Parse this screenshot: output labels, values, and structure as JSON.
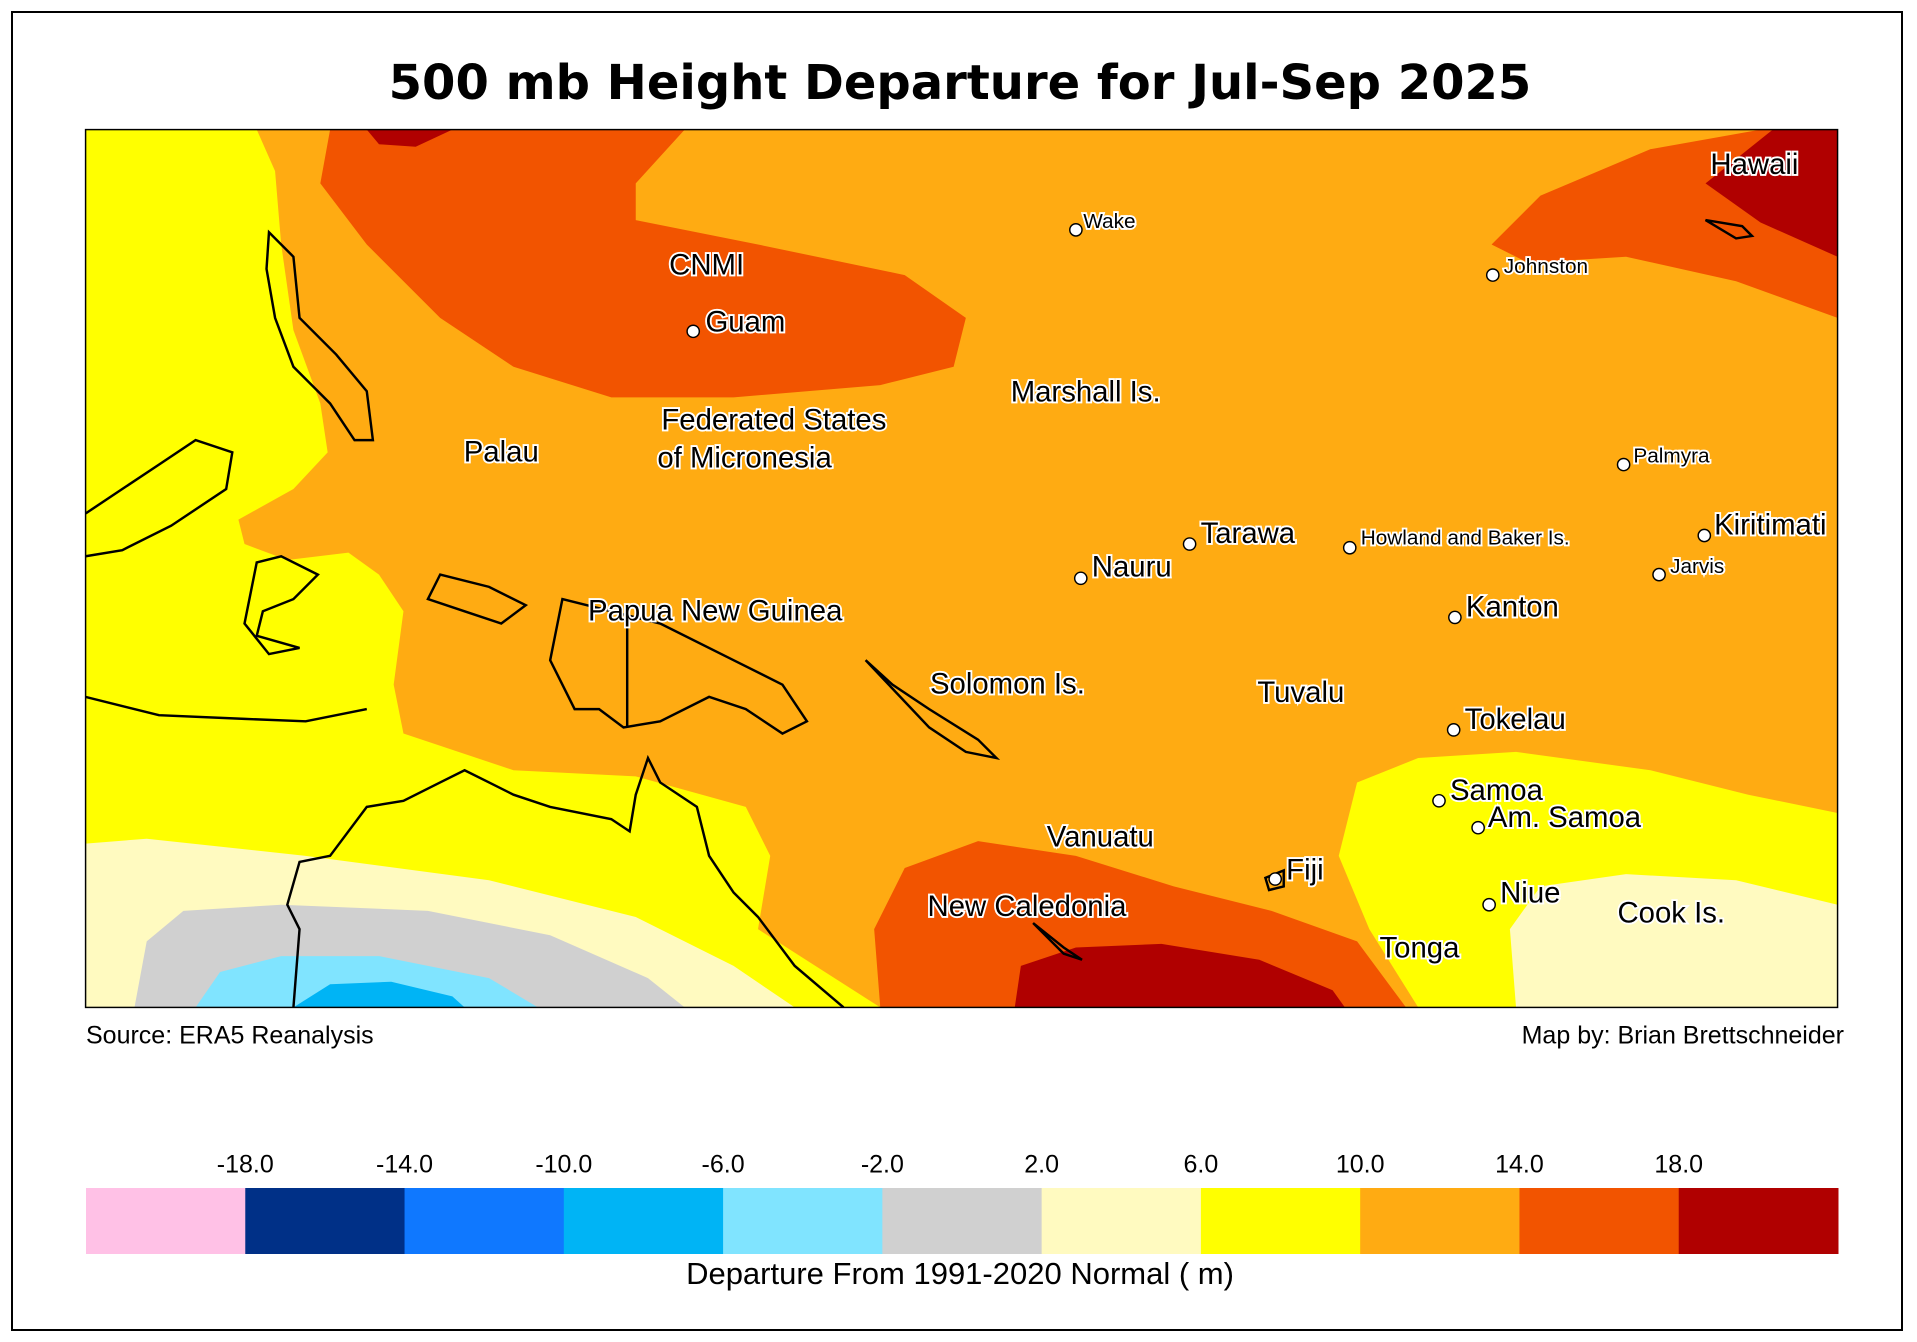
{
  "title": "500 mb Height Departure for Jul-Sep 2025",
  "places": [
    "Hawaii",
    "Wake",
    "CNMI",
    "Guam",
    "Johnston",
    "Marshall Is.",
    "Palau",
    "Federated States",
    "of Micronesia",
    "Palmyra",
    "Kiritimati",
    "Tarawa",
    "Howland and Baker Is.",
    "Jarvis",
    "Nauru",
    "Papua New Guinea",
    "Kanton",
    "Solomon Is.",
    "Tuvalu",
    "Tokelau",
    "Samoa",
    "Am. Samoa",
    "Vanuatu",
    "Fiji",
    "New Caledonia",
    "Niue",
    "Cook Is.",
    "Tonga"
  ],
  "source": "Source: ERA5 Reanalysis",
  "credit": "Map by: Brian Brettschneider",
  "colorbar": {
    "ticks": [
      {
        "value": -18,
        "label": "-18.0"
      },
      {
        "value": -14,
        "label": "-14.0"
      },
      {
        "value": -10,
        "label": "-10.0"
      },
      {
        "value": -6,
        "label": "-6.0"
      },
      {
        "value": -2,
        "label": "-2.0"
      },
      {
        "value": 2,
        "label": "2.0"
      },
      {
        "value": 6,
        "label": "6.0"
      },
      {
        "value": 10,
        "label": "10.0"
      },
      {
        "value": 14,
        "label": "14.0"
      },
      {
        "value": 18,
        "label": "18.0"
      }
    ],
    "colors": [
      "#ffc1e6",
      "#003087",
      "#0f78ff",
      "#00b4f5",
      "#80e4ff",
      "#d0d0d0",
      "#fffac0",
      "#ffff00",
      "#ffab12",
      "#f25400",
      "#b00000"
    ],
    "label": "Departure From 1991-2020 Normal ( m)"
  }
}
